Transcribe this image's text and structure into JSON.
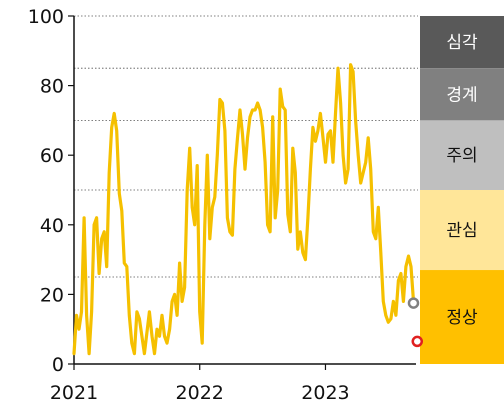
{
  "chart_data": {
    "type": "line",
    "title": "",
    "xlabel": "",
    "ylabel": "",
    "ylim": [
      0,
      100
    ],
    "yticks": [
      0,
      20,
      40,
      60,
      80,
      100
    ],
    "xticks": [
      {
        "label": "2021",
        "value": 2021.0
      },
      {
        "label": "2022",
        "value": 2022.0
      },
      {
        "label": "2023",
        "value": 2023.0
      }
    ],
    "xlim": [
      2021.0,
      2023.72
    ],
    "grid_lines": [
      25,
      50,
      70,
      85,
      100
    ],
    "series": [
      {
        "color": "#f5c000",
        "points": [
          [
            2021.0,
            3
          ],
          [
            2021.02,
            14
          ],
          [
            2021.04,
            10
          ],
          [
            2021.06,
            15
          ],
          [
            2021.08,
            42
          ],
          [
            2021.1,
            14
          ],
          [
            2021.12,
            3
          ],
          [
            2021.14,
            15
          ],
          [
            2021.16,
            40
          ],
          [
            2021.18,
            42
          ],
          [
            2021.2,
            26
          ],
          [
            2021.22,
            36
          ],
          [
            2021.24,
            38
          ],
          [
            2021.26,
            28
          ],
          [
            2021.28,
            55
          ],
          [
            2021.3,
            68
          ],
          [
            2021.32,
            72
          ],
          [
            2021.34,
            67
          ],
          [
            2021.36,
            49
          ],
          [
            2021.38,
            44
          ],
          [
            2021.4,
            29
          ],
          [
            2021.42,
            28
          ],
          [
            2021.44,
            14
          ],
          [
            2021.46,
            6
          ],
          [
            2021.48,
            3
          ],
          [
            2021.5,
            15
          ],
          [
            2021.52,
            13
          ],
          [
            2021.54,
            8
          ],
          [
            2021.56,
            3
          ],
          [
            2021.58,
            9
          ],
          [
            2021.6,
            15
          ],
          [
            2021.62,
            8
          ],
          [
            2021.64,
            3
          ],
          [
            2021.66,
            10
          ],
          [
            2021.68,
            8
          ],
          [
            2021.7,
            14
          ],
          [
            2021.72,
            8
          ],
          [
            2021.74,
            6
          ],
          [
            2021.76,
            10
          ],
          [
            2021.78,
            18
          ],
          [
            2021.8,
            20
          ],
          [
            2021.82,
            14
          ],
          [
            2021.84,
            29
          ],
          [
            2021.86,
            18
          ],
          [
            2021.88,
            22
          ],
          [
            2021.9,
            50
          ],
          [
            2021.92,
            62
          ],
          [
            2021.94,
            45
          ],
          [
            2021.96,
            40
          ],
          [
            2021.98,
            57
          ],
          [
            2022.0,
            15
          ],
          [
            2022.02,
            6
          ],
          [
            2022.04,
            40
          ],
          [
            2022.06,
            60
          ],
          [
            2022.08,
            36
          ],
          [
            2022.1,
            45
          ],
          [
            2022.12,
            48
          ],
          [
            2022.14,
            60
          ],
          [
            2022.16,
            76
          ],
          [
            2022.18,
            75
          ],
          [
            2022.2,
            67
          ],
          [
            2022.22,
            42
          ],
          [
            2022.24,
            38
          ],
          [
            2022.26,
            37
          ],
          [
            2022.28,
            56
          ],
          [
            2022.3,
            65
          ],
          [
            2022.32,
            73
          ],
          [
            2022.34,
            66
          ],
          [
            2022.36,
            56
          ],
          [
            2022.38,
            65
          ],
          [
            2022.4,
            71
          ],
          [
            2022.42,
            73
          ],
          [
            2022.44,
            73
          ],
          [
            2022.46,
            75
          ],
          [
            2022.48,
            73
          ],
          [
            2022.5,
            68
          ],
          [
            2022.52,
            58
          ],
          [
            2022.54,
            40
          ],
          [
            2022.56,
            38
          ],
          [
            2022.58,
            71
          ],
          [
            2022.6,
            42
          ],
          [
            2022.62,
            50
          ],
          [
            2022.64,
            79
          ],
          [
            2022.66,
            74
          ],
          [
            2022.68,
            73
          ],
          [
            2022.7,
            43
          ],
          [
            2022.72,
            38
          ],
          [
            2022.74,
            62
          ],
          [
            2022.76,
            55
          ],
          [
            2022.78,
            33
          ],
          [
            2022.8,
            38
          ],
          [
            2022.82,
            32
          ],
          [
            2022.84,
            30
          ],
          [
            2022.86,
            42
          ],
          [
            2022.88,
            56
          ],
          [
            2022.9,
            68
          ],
          [
            2022.92,
            64
          ],
          [
            2022.94,
            67
          ],
          [
            2022.96,
            72
          ],
          [
            2022.98,
            65
          ],
          [
            2023.0,
            58
          ],
          [
            2023.02,
            66
          ],
          [
            2023.04,
            67
          ],
          [
            2023.06,
            58
          ],
          [
            2023.08,
            72
          ],
          [
            2023.1,
            85
          ],
          [
            2023.12,
            75
          ],
          [
            2023.14,
            60
          ],
          [
            2023.16,
            52
          ],
          [
            2023.18,
            56
          ],
          [
            2023.2,
            86
          ],
          [
            2023.22,
            84
          ],
          [
            2023.24,
            70
          ],
          [
            2023.26,
            60
          ],
          [
            2023.28,
            52
          ],
          [
            2023.3,
            55
          ],
          [
            2023.32,
            58
          ],
          [
            2023.34,
            65
          ],
          [
            2023.36,
            56
          ],
          [
            2023.38,
            38
          ],
          [
            2023.4,
            36
          ],
          [
            2023.42,
            45
          ],
          [
            2023.44,
            32
          ],
          [
            2023.46,
            18
          ],
          [
            2023.48,
            14
          ],
          [
            2023.5,
            12
          ],
          [
            2023.52,
            13
          ],
          [
            2023.54,
            18
          ],
          [
            2023.56,
            14
          ],
          [
            2023.58,
            24
          ],
          [
            2023.6,
            26
          ],
          [
            2023.62,
            18
          ],
          [
            2023.64,
            28
          ],
          [
            2023.66,
            31
          ],
          [
            2023.68,
            28
          ],
          [
            2023.7,
            18
          ]
        ]
      }
    ],
    "markers": [
      {
        "x": 2023.7,
        "y": 17.5,
        "stroke": "#808080",
        "fill": "#ffffff"
      },
      {
        "x": 2023.73,
        "y": 6.5,
        "stroke": "#e02020",
        "fill": "#ffffff"
      }
    ],
    "bands": [
      {
        "label": "심각",
        "from": 85,
        "to": 100,
        "color": "#595959",
        "text_color": "#ffffff"
      },
      {
        "label": "경계",
        "from": 70,
        "to": 85,
        "color": "#808080",
        "text_color": "#ffffff"
      },
      {
        "label": "주의",
        "from": 50,
        "to": 70,
        "color": "#bfbfbf",
        "text_color": "#111111"
      },
      {
        "label": "관심",
        "from": 27,
        "to": 50,
        "color": "#ffe699",
        "text_color": "#111111"
      },
      {
        "label": "정상",
        "from": 0,
        "to": 27,
        "color": "#ffc000",
        "text_color": "#111111"
      }
    ],
    "legend": "none",
    "grid": "dotted horizontal"
  }
}
